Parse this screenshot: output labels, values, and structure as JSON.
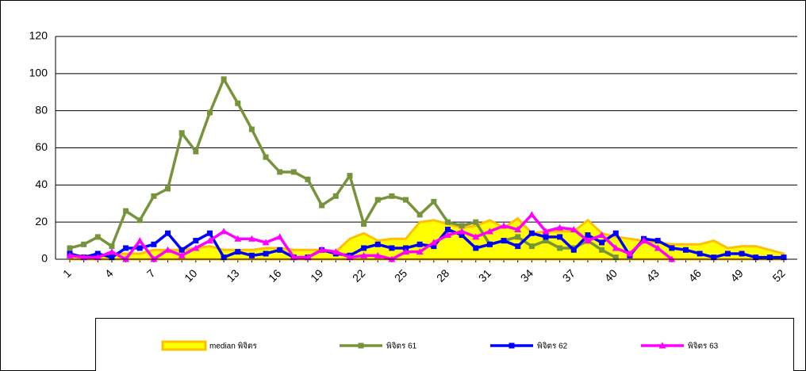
{
  "chart_data": {
    "type": "line",
    "categories": [
      "1",
      null,
      null,
      "4",
      null,
      null,
      "7",
      null,
      null,
      "10",
      null,
      null,
      "13",
      null,
      null,
      "16",
      null,
      null,
      "19",
      null,
      null,
      "22",
      null,
      null,
      "25",
      null,
      null,
      "28",
      null,
      null,
      "31",
      null,
      null,
      "34",
      null,
      null,
      "37",
      null,
      null,
      "40",
      null,
      null,
      "43",
      null,
      null,
      "46",
      null,
      null,
      "49",
      null,
      null,
      "52"
    ],
    "ylim": [
      0,
      120
    ],
    "yticks": [
      0,
      20,
      40,
      60,
      80,
      100,
      120
    ],
    "grid": true,
    "legend": "bottom",
    "series": [
      {
        "name": "median พิจิตร",
        "type": "area",
        "color": "#ffff00",
        "edge": "#ffc000",
        "values": [
          2,
          2,
          2,
          3,
          3,
          3,
          5,
          5,
          5,
          6,
          7,
          5,
          5,
          5,
          6,
          6,
          5,
          5,
          5,
          4,
          11,
          14,
          10,
          11,
          11,
          20,
          21,
          19,
          17,
          18,
          21,
          17,
          22,
          14,
          15,
          15,
          15,
          21,
          14,
          12,
          11,
          10,
          9,
          8,
          8,
          8,
          10,
          6,
          7,
          7,
          5,
          3
        ]
      },
      {
        "name": "พิจิตร 61",
        "type": "line",
        "color": "#77933c",
        "marker": "square",
        "values": [
          6,
          8,
          12,
          7,
          26,
          21,
          34,
          38,
          68,
          58,
          79,
          97,
          84,
          70,
          55,
          47,
          47,
          43,
          29,
          34,
          45,
          19,
          32,
          34,
          32,
          24,
          31,
          20,
          18,
          20,
          8,
          10,
          12,
          7,
          10,
          6,
          6,
          10,
          5,
          1,
          null,
          null,
          null,
          null,
          null,
          null,
          null,
          null,
          null,
          null,
          null,
          null
        ]
      },
      {
        "name": "พิจิตร 62",
        "type": "line",
        "color": "#0000ff",
        "marker": "square",
        "values": [
          3,
          1,
          3,
          1,
          6,
          6,
          8,
          14,
          5,
          10,
          14,
          1,
          4,
          2,
          3,
          5,
          1,
          1,
          5,
          3,
          2,
          6,
          8,
          6,
          6,
          8,
          7,
          16,
          13,
          6,
          8,
          10,
          7,
          14,
          12,
          12,
          5,
          13,
          9,
          14,
          2,
          11,
          10,
          6,
          5,
          3,
          1,
          3,
          3,
          1,
          1,
          1
        ]
      },
      {
        "name": "พิจิตร 63",
        "type": "line",
        "color": "#ff00ff",
        "marker": "triangle",
        "values": [
          2,
          1,
          1,
          4,
          0,
          10,
          0,
          5,
          2,
          6,
          10,
          15,
          11,
          11,
          9,
          12,
          1,
          1,
          5,
          4,
          1,
          2,
          2,
          0,
          4,
          4,
          9,
          13,
          15,
          12,
          15,
          18,
          16,
          24,
          15,
          17,
          16,
          10,
          13,
          6,
          3,
          10,
          6,
          0,
          null,
          null,
          null,
          null,
          null,
          null,
          null,
          null
        ]
      }
    ]
  }
}
